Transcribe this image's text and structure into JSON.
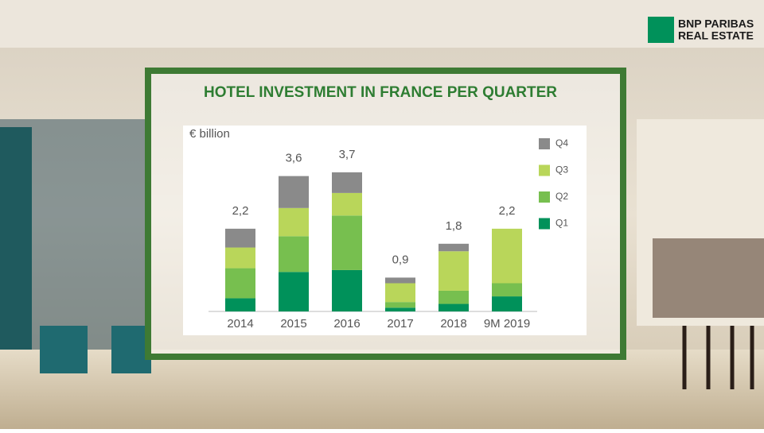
{
  "brand": {
    "line1": "BNP PARIBAS",
    "line2": "REAL ESTATE"
  },
  "chart_data": {
    "type": "stacked_bar",
    "title": "HOTEL INVESTMENT IN FRANCE PER QUARTER",
    "unit_label": "€ billion",
    "categories": [
      "2014",
      "2015",
      "2016",
      "2017",
      "2018",
      "9M 2019"
    ],
    "series": [
      {
        "name": "Q1",
        "color": "#00915a",
        "values": [
          0.35,
          1.05,
          1.1,
          0.1,
          0.2,
          0.4
        ]
      },
      {
        "name": "Q2",
        "color": "#77bf4f",
        "values": [
          0.8,
          0.95,
          1.45,
          0.15,
          0.35,
          0.35
        ]
      },
      {
        "name": "Q3",
        "color": "#b9d65a",
        "values": [
          0.55,
          0.75,
          0.6,
          0.5,
          1.05,
          1.45
        ]
      },
      {
        "name": "Q4",
        "color": "#8a8a8a",
        "values": [
          0.5,
          0.85,
          0.55,
          0.15,
          0.2,
          0
        ]
      }
    ],
    "totals": {
      "values": [
        2.2,
        3.6,
        3.7,
        0.9,
        1.8,
        2.2
      ],
      "value_labels": [
        "2,2",
        "3,6",
        "3,7",
        "0,9",
        "1,8",
        "2,2"
      ]
    },
    "ylim": [
      0,
      4.5
    ],
    "legend": "right"
  }
}
